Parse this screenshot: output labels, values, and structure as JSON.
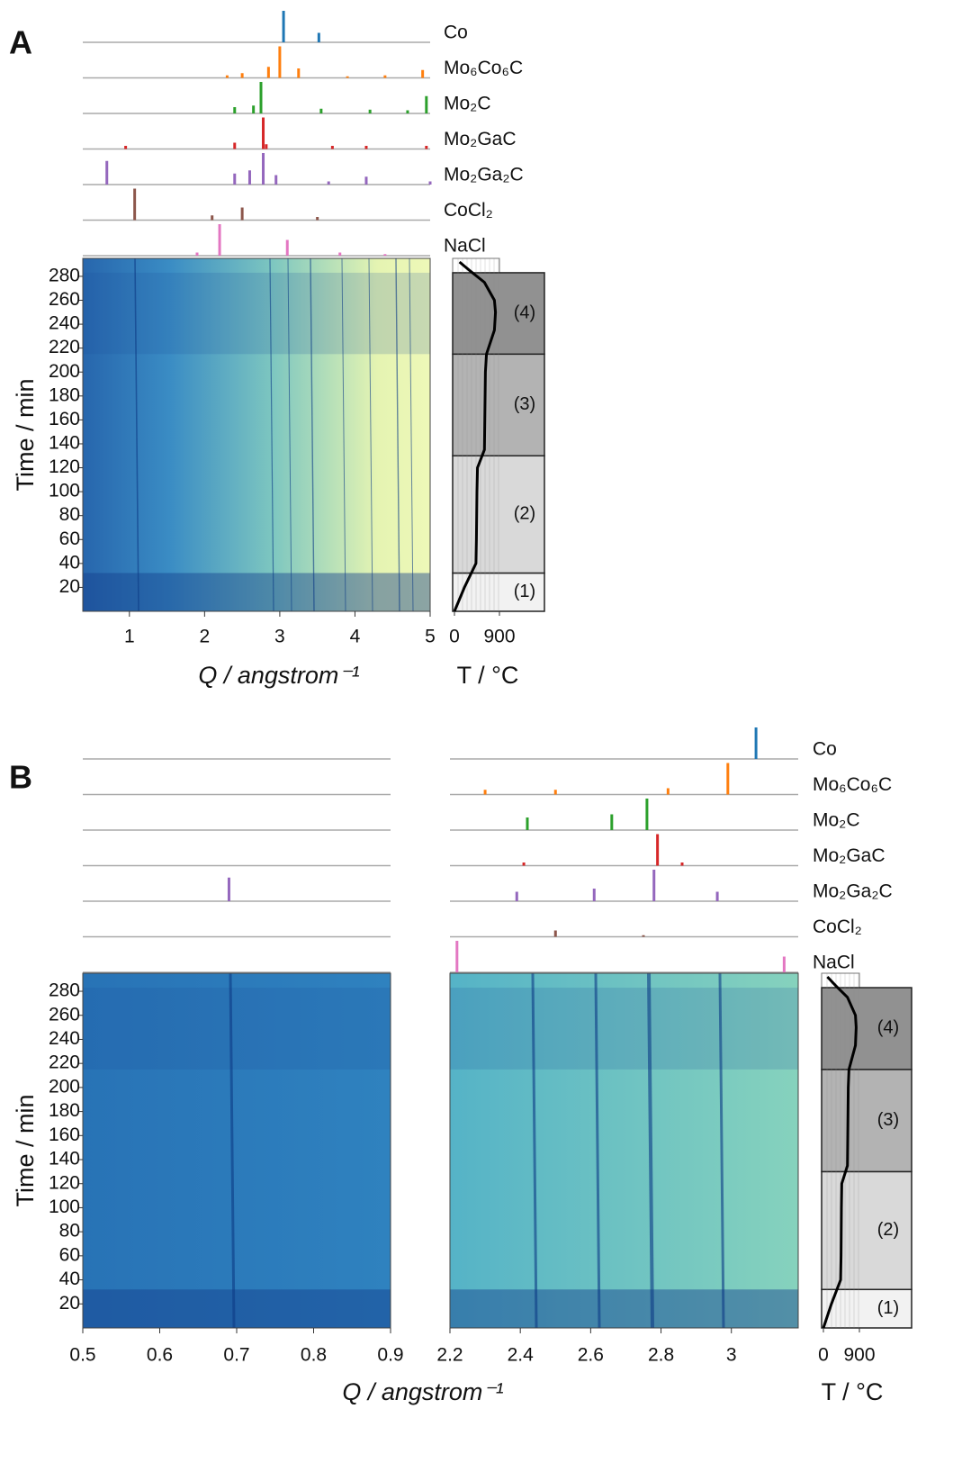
{
  "panels": [
    {
      "label": "A",
      "patterns": [
        {
          "name": "Co",
          "color": "#1f77b4",
          "q": [
            3.05,
            3.52
          ],
          "intensity": [
            100,
            30
          ]
        },
        {
          "name": "Mo₆Co₆C",
          "color": "#ff7f0e",
          "q": [
            2.3,
            2.5,
            2.85,
            3.0,
            3.25,
            3.9,
            4.4,
            4.9
          ],
          "intensity": [
            8,
            15,
            35,
            100,
            30,
            5,
            8,
            25
          ]
        },
        {
          "name": "Mo₂C",
          "color": "#2ca02c",
          "q": [
            2.4,
            2.65,
            2.75,
            3.55,
            4.2,
            4.7,
            4.95
          ],
          "intensity": [
            20,
            25,
            100,
            15,
            12,
            10,
            55
          ]
        },
        {
          "name": "Mo₂GaC",
          "color": "#d62728",
          "q": [
            0.95,
            2.4,
            2.78,
            2.82,
            3.7,
            4.15,
            4.95
          ],
          "intensity": [
            10,
            20,
            100,
            15,
            10,
            10,
            10
          ]
        },
        {
          "name": "Mo₂Ga₂C",
          "color": "#9467bd",
          "q": [
            0.7,
            2.4,
            2.6,
            2.78,
            2.95,
            3.65,
            4.15,
            5.0
          ],
          "intensity": [
            75,
            35,
            45,
            100,
            30,
            10,
            25,
            10
          ]
        },
        {
          "name": "CoCl₂",
          "color": "#8c564b",
          "q": [
            1.07,
            2.1,
            2.5,
            3.5
          ],
          "intensity": [
            100,
            15,
            40,
            10
          ]
        },
        {
          "name": "NaCl",
          "color": "#e377c2",
          "q": [
            1.9,
            2.2,
            3.1,
            3.8,
            4.4
          ],
          "intensity": [
            10,
            100,
            50,
            10,
            5
          ]
        }
      ],
      "axes": [
        {
          "xlim": [
            0.38,
            5
          ],
          "xticks": [
            1,
            2,
            3,
            4,
            5
          ]
        }
      ],
      "xlabel": "Q / angstrom⁻¹",
      "ylabel": "Time / min",
      "ylim": [
        0,
        295
      ],
      "yticks": [
        20,
        40,
        60,
        80,
        100,
        120,
        140,
        160,
        180,
        200,
        220,
        240,
        260,
        280
      ],
      "temperature": {
        "xlim": [
          0,
          900
        ],
        "xticks": [
          0,
          900
        ],
        "xlabel": "T / °C",
        "time": [
          0,
          20,
          40,
          60,
          100,
          120,
          135,
          200,
          215,
          235,
          250,
          260,
          275,
          285,
          292
        ],
        "T": [
          0,
          200,
          430,
          440,
          450,
          460,
          600,
          620,
          640,
          800,
          820,
          800,
          600,
          300,
          100
        ],
        "stages": [
          {
            "label": "(1)",
            "start": 0,
            "end": 32
          },
          {
            "label": "(2)",
            "start": 32,
            "end": 130
          },
          {
            "label": "(3)",
            "start": 130,
            "end": 215
          },
          {
            "label": "(4)",
            "start": 215,
            "end": 283
          }
        ]
      }
    },
    {
      "label": "B",
      "patterns": [
        {
          "name": "Co",
          "color": "#1f77b4",
          "q": [
            3.07
          ],
          "intensity": [
            100
          ]
        },
        {
          "name": "Mo₆Co₆C",
          "color": "#ff7f0e",
          "q": [
            2.3,
            2.5,
            2.82,
            2.99
          ],
          "intensity": [
            15,
            15,
            20,
            100
          ]
        },
        {
          "name": "Mo₂C",
          "color": "#2ca02c",
          "q": [
            2.42,
            2.66,
            2.76
          ],
          "intensity": [
            40,
            50,
            100
          ]
        },
        {
          "name": "Mo₂GaC",
          "color": "#d62728",
          "q": [
            2.41,
            2.79,
            2.86
          ],
          "intensity": [
            10,
            100,
            10
          ]
        },
        {
          "name": "Mo₂Ga₂C",
          "color": "#9467bd",
          "q": [
            0.69,
            2.39,
            2.61,
            2.78,
            2.96
          ],
          "intensity": [
            75,
            30,
            40,
            100,
            30
          ]
        },
        {
          "name": "CoCl₂",
          "color": "#8c564b",
          "q": [
            2.5,
            2.75
          ],
          "intensity": [
            20,
            5
          ]
        },
        {
          "name": "NaCl",
          "color": "#e377c2",
          "q": [
            2.22,
            3.15
          ],
          "intensity": [
            100,
            50
          ]
        }
      ],
      "axes": [
        {
          "xlim": [
            0.5,
            0.9
          ],
          "xticks": [
            0.5,
            0.6,
            0.7,
            0.8,
            0.9
          ]
        },
        {
          "xlim": [
            2.2,
            3.19
          ],
          "xticks": [
            2.2,
            2.4,
            2.6,
            2.8,
            3.0
          ]
        }
      ],
      "xlabel": "Q / angstrom⁻¹",
      "ylabel": "Time / min",
      "ylim": [
        0,
        295
      ],
      "yticks": [
        20,
        40,
        60,
        80,
        100,
        120,
        140,
        160,
        180,
        200,
        220,
        240,
        260,
        280
      ],
      "temperature": {
        "xlim": [
          0,
          900
        ],
        "xticks": [
          0,
          900
        ],
        "xlabel": "T / °C",
        "time": [
          0,
          20,
          40,
          60,
          100,
          120,
          135,
          200,
          215,
          235,
          250,
          260,
          275,
          285,
          292
        ],
        "T": [
          0,
          200,
          430,
          440,
          450,
          460,
          600,
          620,
          640,
          800,
          820,
          800,
          600,
          300,
          100
        ],
        "stages": [
          {
            "label": "(1)",
            "start": 0,
            "end": 32
          },
          {
            "label": "(2)",
            "start": 32,
            "end": 130
          },
          {
            "label": "(3)",
            "start": 130,
            "end": 215
          },
          {
            "label": "(4)",
            "start": 215,
            "end": 283
          }
        ]
      }
    }
  ]
}
